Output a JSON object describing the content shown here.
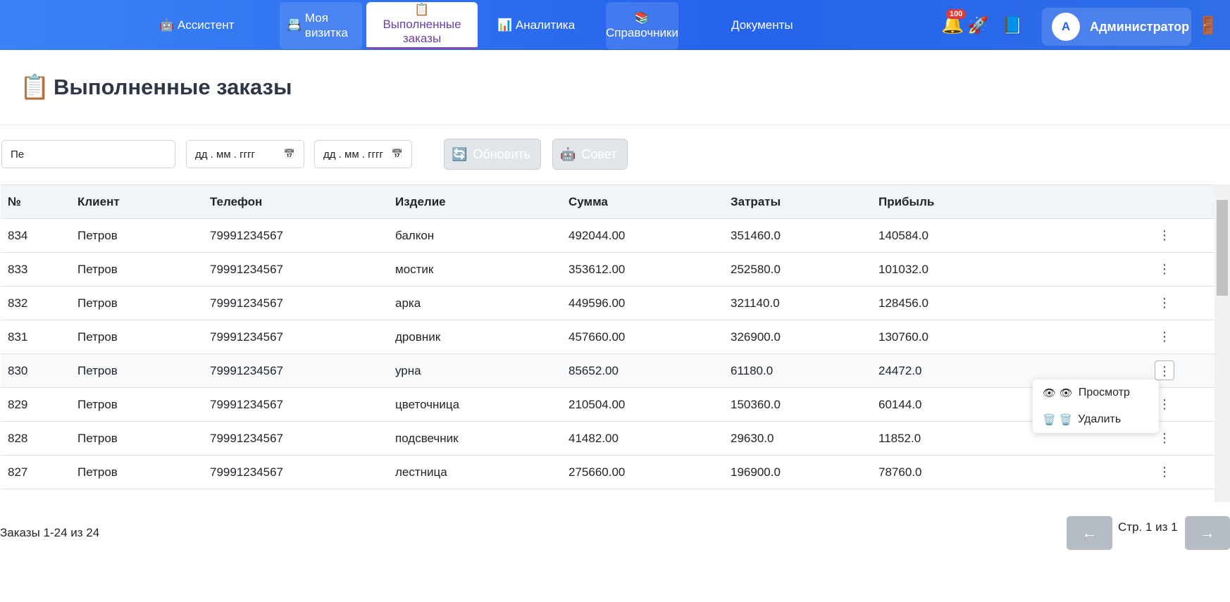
{
  "nav": {
    "items": [
      {
        "icon": "🤖",
        "label": "Ассистент"
      },
      {
        "icon": "📇",
        "label": "Моя визитка"
      },
      {
        "icon": "📋",
        "label": "Выполненные заказы"
      },
      {
        "icon": "📊",
        "label": "Аналитика"
      },
      {
        "icon": "📚",
        "label": "Справочники"
      },
      {
        "label": "Документы"
      }
    ],
    "bell": "🔔",
    "badge": "100",
    "rocket": "🚀",
    "book": "📘",
    "avatar": "A",
    "user": "Администратор",
    "logout": "🚪"
  },
  "header": {
    "icon": "📋",
    "title": "Выполненные заказы"
  },
  "filters": {
    "search": "Пе",
    "date_from": "дд . мм . гггг",
    "date_to": "дд . мм . гггг",
    "calendar": "📅",
    "refresh_icon": "🔄",
    "refresh": "Обновить",
    "advice_icon": "🤖",
    "advice": "Совет"
  },
  "table": {
    "columns": [
      "№",
      "Клиент",
      "Телефон",
      "Изделие",
      "Сумма",
      "Затраты",
      "Прибыль"
    ],
    "rows": [
      [
        "834",
        "Петров",
        "79991234567",
        "балкон",
        "492044.00",
        "351460.0",
        "140584.0"
      ],
      [
        "833",
        "Петров",
        "79991234567",
        "мостик",
        "353612.00",
        "252580.0",
        "101032.0"
      ],
      [
        "832",
        "Петров",
        "79991234567",
        "арка",
        "449596.00",
        "321140.0",
        "128456.0"
      ],
      [
        "831",
        "Петров",
        "79991234567",
        "дровник",
        "457660.00",
        "326900.0",
        "130760.0"
      ],
      [
        "830",
        "Петров",
        "79991234567",
        "урна",
        "85652.00",
        "61180.0",
        "24472.0"
      ],
      [
        "829",
        "Петров",
        "79991234567",
        "цветочница",
        "210504.00",
        "150360.0",
        "60144.0"
      ],
      [
        "828",
        "Петров",
        "79991234567",
        "подсвечник",
        "41482.00",
        "29630.0",
        "11852.0"
      ],
      [
        "827",
        "Петров",
        "79991234567",
        "лестница",
        "275660.00",
        "196900.0",
        "78760.0"
      ]
    ],
    "row_menu": "⋮"
  },
  "context_menu": [
    {
      "icon": "👁 👁",
      "label": "Просмотр"
    },
    {
      "icon": "🗑️ 🗑️",
      "label": "Удалить"
    }
  ],
  "footer": {
    "summary": "Заказы 1-24 из 24",
    "prev": "←",
    "page": "Стр. 1 из 1",
    "next": "→"
  }
}
